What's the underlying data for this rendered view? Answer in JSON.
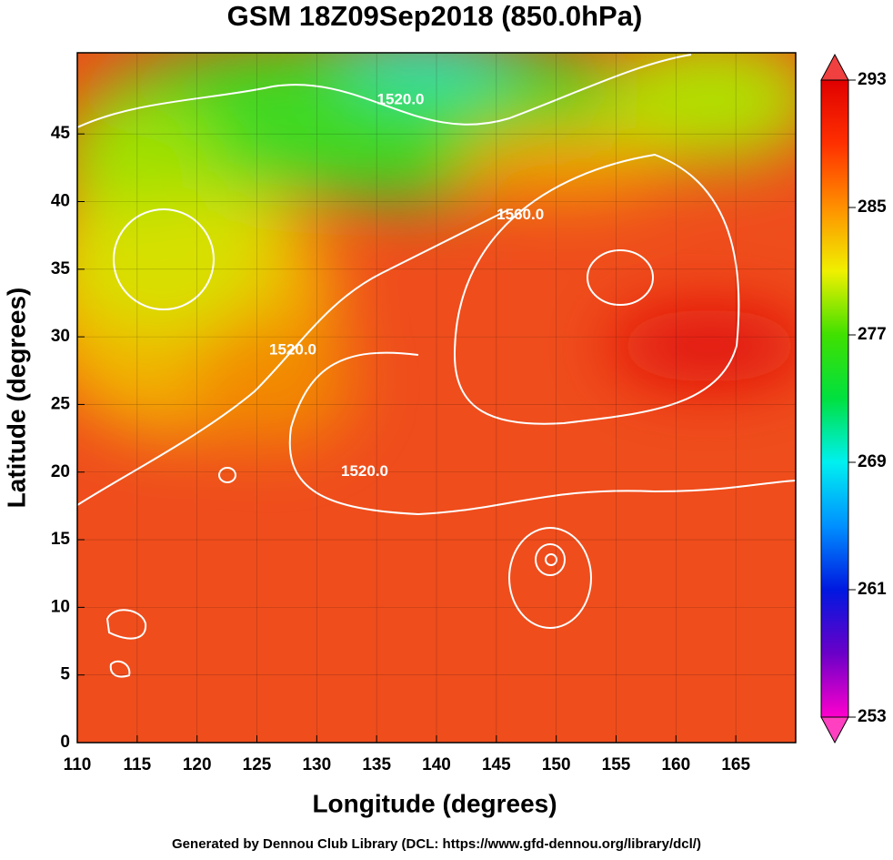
{
  "chart_data": {
    "type": "map",
    "title": "GSM 18Z09Sep2018 (850.0hPa)",
    "x_label": "Longitude (degrees)",
    "y_label": "Latitude  (degrees)",
    "footer": "Generated by Dennou Club Library (DCL: https://www.gfd-dennou.org/library/dcl/)",
    "xlim": [
      110,
      170
    ],
    "ylim": [
      0,
      51
    ],
    "xticks": [
      110,
      115,
      120,
      125,
      130,
      135,
      140,
      145,
      150,
      155,
      160,
      165
    ],
    "yticks": [
      0,
      5,
      10,
      15,
      20,
      25,
      30,
      35,
      40,
      45
    ],
    "grid": true,
    "contour_labels": [
      {
        "text": "1520.0",
        "x": 137,
        "y": 47.5
      },
      {
        "text": "1560.0",
        "x": 147,
        "y": 39
      },
      {
        "text": "1520.0",
        "x": 128,
        "y": 29
      },
      {
        "text": "1520.0",
        "x": 134,
        "y": 20
      }
    ],
    "colorbar": {
      "lim": [
        253,
        293
      ],
      "ticks": [
        253,
        261,
        269,
        277,
        285,
        293
      ],
      "colors": [
        "#ff00cc",
        "#6a00c8",
        "#0018e0",
        "#0090ff",
        "#00f0f0",
        "#00e040",
        "#40e000",
        "#f0f000",
        "#ff9000",
        "#ff3000",
        "#e00000"
      ]
    }
  }
}
